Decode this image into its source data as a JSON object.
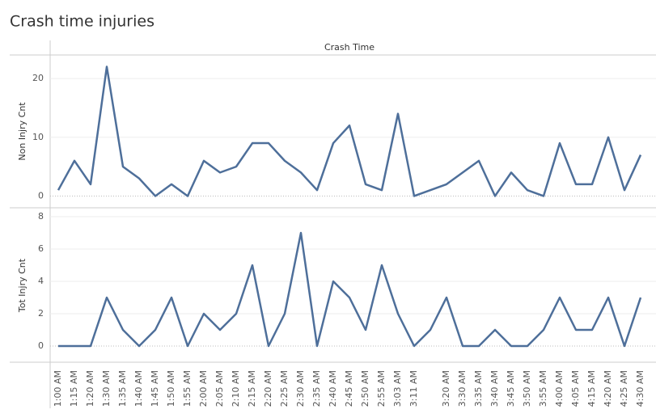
{
  "chart_data": {
    "type": "line",
    "title": "Crash time injuries",
    "x_label": "Crash Time",
    "color": "#4e6f9a",
    "grid": true,
    "categories": [
      "1:00 AM",
      "1:15 AM",
      "1:20 AM",
      "1:30 AM",
      "1:35 AM",
      "1:40 AM",
      "1:45 AM",
      "1:50 AM",
      "1:55 AM",
      "2:00 AM",
      "2:05 AM",
      "2:10 AM",
      "2:15 AM",
      "2:20 AM",
      "2:25 AM",
      "2:30 AM",
      "2:35 AM",
      "2:40 AM",
      "2:45 AM",
      "2:50 AM",
      "2:55 AM",
      "3:03 AM",
      "3:11 AM",
      null,
      "3:20 AM",
      "3:30 AM",
      "3:35 AM",
      "3:40 AM",
      "3:45 AM",
      "3:50 AM",
      "3:55 AM",
      "4:00 AM",
      "4:05 AM",
      "4:15 AM",
      "4:20 AM",
      "4:25 AM",
      "4:30 AM"
    ],
    "panes": [
      {
        "y_label": "Non Injry Cnt",
        "ylim": [
          -2,
          24
        ],
        "yticks": [
          0,
          10,
          20
        ],
        "values": [
          1,
          6,
          2,
          22,
          5,
          3,
          0,
          2,
          0,
          6,
          4,
          5,
          9,
          9,
          6,
          4,
          1,
          9,
          12,
          2,
          1,
          14,
          0,
          1,
          2,
          4,
          6,
          0,
          4,
          1,
          0,
          9,
          2,
          2,
          10,
          1,
          7
        ]
      },
      {
        "y_label": "Tot Injry Cnt",
        "ylim": [
          -1,
          8.5
        ],
        "yticks": [
          0,
          2,
          4,
          6,
          8
        ],
        "values": [
          0,
          0,
          0,
          3,
          1,
          0,
          1,
          3,
          0,
          2,
          1,
          2,
          5,
          0,
          2,
          7,
          0,
          4,
          3,
          1,
          5,
          2,
          0,
          1,
          3,
          0,
          0,
          1,
          0,
          0,
          1,
          3,
          1,
          1,
          3,
          0,
          3
        ]
      }
    ]
  }
}
